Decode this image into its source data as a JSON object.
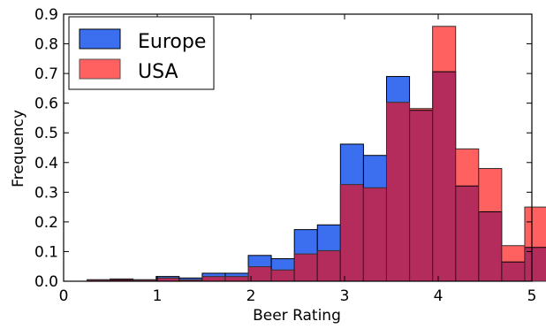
{
  "chart_data": {
    "type": "bar",
    "xlabel": "Beer Rating",
    "ylabel": "Frequency",
    "xlim": [
      0,
      5
    ],
    "ylim": [
      0,
      0.9
    ],
    "xticks": [
      0,
      1,
      2,
      3,
      4,
      5
    ],
    "xtick_labels": [
      "0",
      "1",
      "2",
      "3",
      "4",
      "5"
    ],
    "yticks": [
      0.0,
      0.1,
      0.2,
      0.3,
      0.4,
      0.5,
      0.6,
      0.7,
      0.8,
      0.9
    ],
    "ytick_labels": [
      "0.0",
      "0.1",
      "0.2",
      "0.3",
      "0.4",
      "0.5",
      "0.6",
      "0.7",
      "0.8",
      "0.9"
    ],
    "grid": false,
    "legend": {
      "position": "top-left"
    },
    "bin_edges": [
      0.25,
      0.496,
      0.742,
      0.988,
      1.234,
      1.48,
      1.726,
      1.972,
      2.218,
      2.464,
      2.71,
      2.956,
      3.202,
      3.448,
      3.694,
      3.94,
      4.186,
      4.432,
      4.678,
      4.924
    ],
    "bin_width": 0.246,
    "series": [
      {
        "name": "Europe",
        "color": "#3b6ff0",
        "values": [
          0.005,
          0.005,
          0.005,
          0.016,
          0.011,
          0.027,
          0.027,
          0.087,
          0.076,
          0.174,
          0.19,
          0.462,
          0.424,
          0.69,
          0.576,
          0.706,
          0.321,
          0.234,
          0.065,
          0.114
        ]
      },
      {
        "name": "USA",
        "color": "#ff6060",
        "values": [
          0.005,
          0.008,
          0.005,
          0.011,
          0.005,
          0.016,
          0.016,
          0.049,
          0.038,
          0.092,
          0.103,
          0.326,
          0.315,
          0.603,
          0.582,
          0.859,
          0.446,
          0.38,
          0.12,
          0.25
        ]
      }
    ],
    "overlap_color": "#b32c5c"
  }
}
